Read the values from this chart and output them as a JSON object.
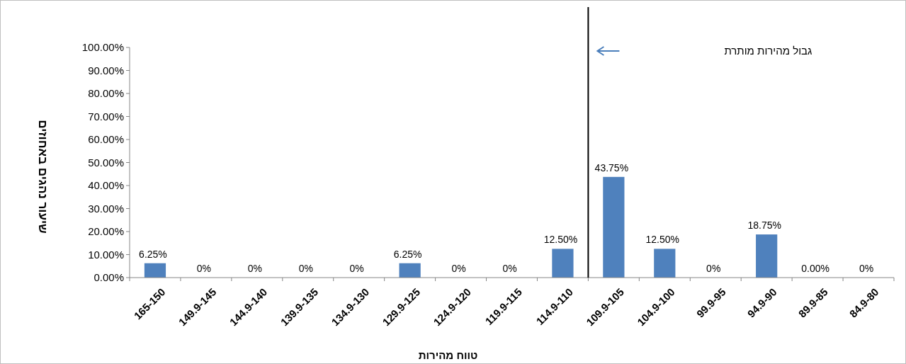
{
  "chart_data": {
    "type": "bar",
    "xlabel": "טווח מהירות",
    "ylabel": "שיעור נהגים באחוזים",
    "categories": [
      "165-150",
      "149.9-145",
      "144.9-140",
      "139.9-135",
      "134.9-130",
      "129.9-125",
      "124.9-120",
      "119.9-115",
      "114.9-110",
      "109.9-105",
      "104.9-100",
      "99.9-95",
      "94.9-90",
      "89.9-85",
      "84.9-80"
    ],
    "values": [
      6.25,
      0,
      0,
      0,
      0,
      6.25,
      0,
      0,
      12.5,
      43.75,
      12.5,
      0,
      18.75,
      0,
      0
    ],
    "value_labels": [
      "6.25%",
      "0%",
      "0%",
      "0%",
      "0%",
      "6.25%",
      "0%",
      "0%",
      "12.50%",
      "43.75%",
      "12.50%",
      "0%",
      "18.75%",
      "0.00%",
      "0%"
    ],
    "color": "#4f81bd",
    "ylim": [
      0,
      100
    ],
    "yticks": [
      {
        "value": 0,
        "label": "0.00%"
      },
      {
        "value": 10,
        "label": "10.00%"
      },
      {
        "value": 20,
        "label": "20.00%"
      },
      {
        "value": 30,
        "label": "30.00%"
      },
      {
        "value": 40,
        "label": "40.00%"
      },
      {
        "value": 50,
        "label": "50.00%"
      },
      {
        "value": 60,
        "label": "60.00%"
      },
      {
        "value": 70,
        "label": "70.00%"
      },
      {
        "value": 80,
        "label": "80.00%"
      },
      {
        "value": 90,
        "label": "90.00%"
      },
      {
        "value": 100,
        "label": "100.00%"
      }
    ],
    "ref_lines": [
      {
        "axis": "x",
        "value": "109.9-105",
        "label": "גבול מהירות מותרת",
        "color": "#000000"
      }
    ],
    "grid": false
  }
}
